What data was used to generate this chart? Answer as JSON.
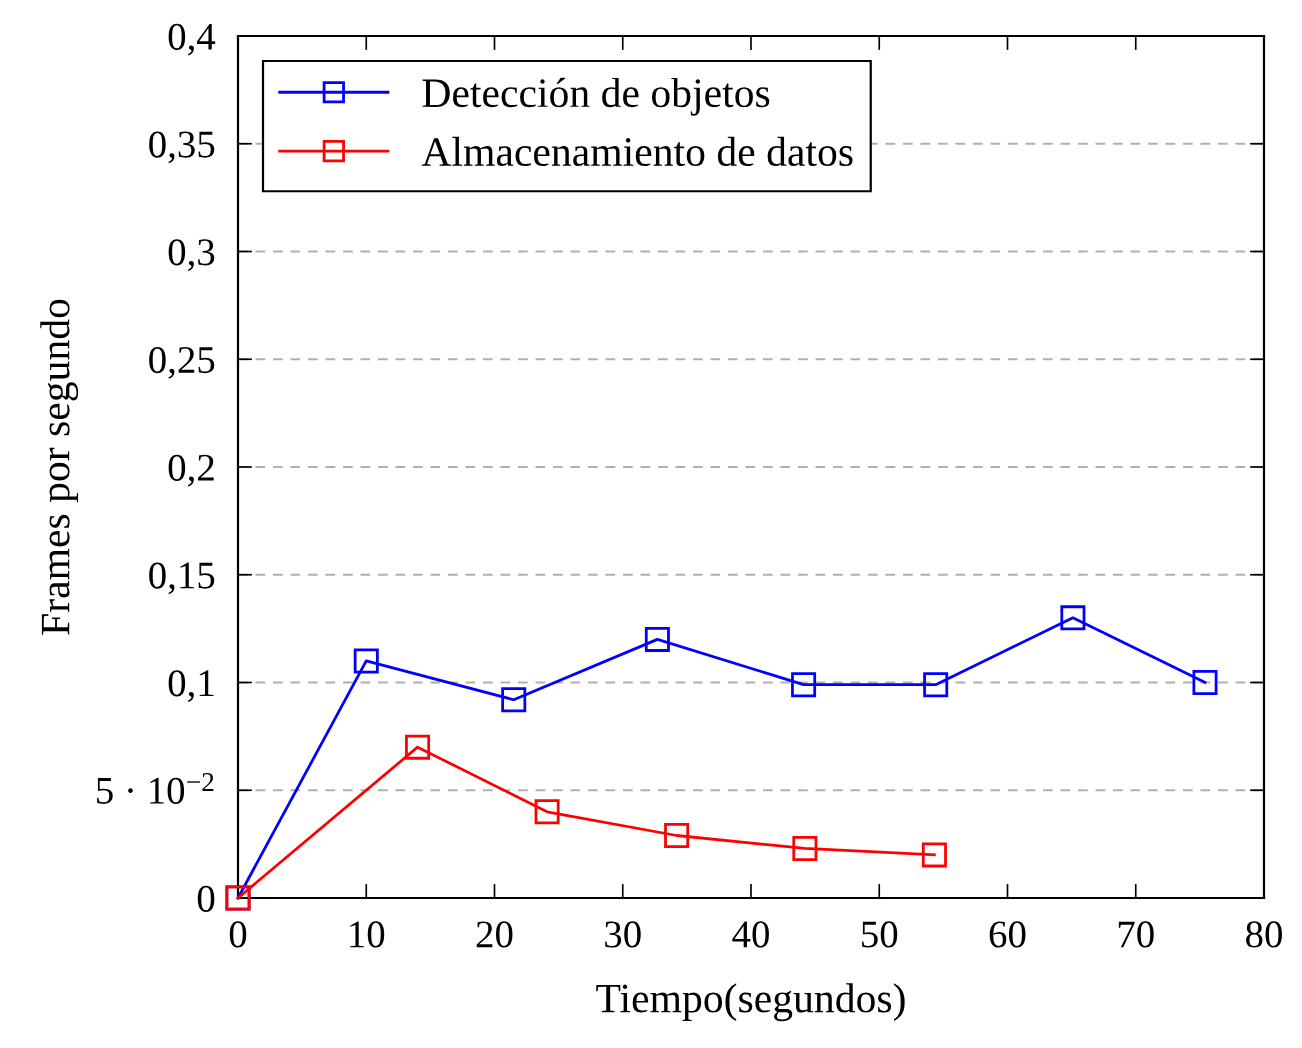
{
  "chart_data": {
    "type": "line",
    "xlabel": "Tiempo(segundos)",
    "ylabel": "Frames por segundo",
    "xlim": [
      0,
      80
    ],
    "xticks": [
      0,
      10,
      20,
      30,
      40,
      50,
      60,
      70,
      80
    ],
    "ylim": [
      0,
      0.4
    ],
    "yticks": [
      0,
      {
        "value": 0.05,
        "label": "5 · 10$^{−2}$"
      },
      {
        "value": 0.1,
        "label": "0,1"
      },
      {
        "value": 0.15,
        "label": "0,15"
      },
      {
        "value": 0.2,
        "label": "0,2"
      },
      {
        "value": 0.25,
        "label": "0,25"
      },
      {
        "value": 0.3,
        "label": "0,3"
      },
      {
        "value": 0.35,
        "label": "0,35"
      },
      {
        "value": 0.4,
        "label": "0,4"
      }
    ],
    "grid": "y",
    "legend": "top left",
    "marker": "square",
    "line_style": "solid",
    "series": [
      {
        "name": "Detección de objetos",
        "color": "#0000ff",
        "x": [
          0,
          10.0,
          21.5,
          32.7,
          44.1,
          54.4,
          65.1,
          75.4
        ],
        "values": [
          0,
          0.11,
          0.092,
          0.12,
          0.099,
          0.099,
          0.13,
          0.1
        ]
      },
      {
        "name": "Almacenamiento de datos",
        "color": "#ff0000",
        "x": [
          0,
          14.0,
          24.1,
          34.2,
          44.2,
          54.3
        ],
        "values": [
          0,
          0.07,
          0.04,
          0.029,
          0.023,
          0.02
        ]
      }
    ]
  }
}
